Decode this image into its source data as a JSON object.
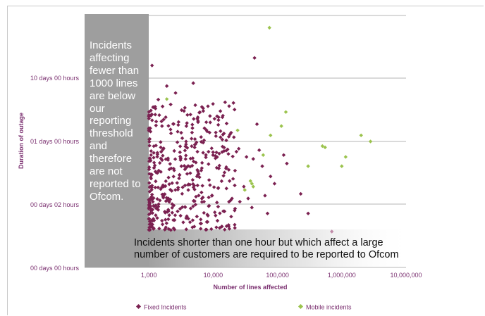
{
  "chart_data": {
    "type": "scatter",
    "title": "",
    "xlabel": "Number of lines affected",
    "ylabel": "Duration of outage",
    "x_scale": "log",
    "xlim": [
      100,
      10000000
    ],
    "x_ticks": [
      {
        "value": 1000,
        "label": "1,000"
      },
      {
        "value": 10000,
        "label": "10,000"
      },
      {
        "value": 100000,
        "label": "100,000"
      },
      {
        "value": 1000000,
        "label": "1,000,000"
      },
      {
        "value": 10000000,
        "label": "10,000,000"
      }
    ],
    "y_tick_labels": [
      "10 days 00 hours",
      "01 days 00 hours",
      "00 days 02 hours",
      "00 days 00 hours"
    ],
    "grid": "horizontal",
    "legend_position": "bottom",
    "annotations": {
      "left": "Incidents affecting fewer than 1000 lines are below our reporting threshold and therefore are not reported to Ofcom.",
      "bottom_line1": "Incidents shorter than one hour but which affect a large",
      "bottom_line2": "number of customers are required to be reported to Ofcom"
    },
    "series": [
      {
        "name": "Fixed Incidents",
        "color": "#7b2151",
        "points": [
          [
            1120,
            380
          ],
          [
            1250,
            85
          ],
          [
            1400,
            110
          ],
          [
            1600,
            42
          ],
          [
            1900,
            180
          ],
          [
            4900,
            200
          ],
          [
            9000,
            48
          ],
          [
            11500,
            60
          ],
          [
            13000,
            28
          ],
          [
            16000,
            25
          ],
          [
            19000,
            33
          ],
          [
            21000,
            28
          ],
          [
            23000,
            16
          ],
          [
            25000,
            18
          ],
          [
            33000,
            13
          ],
          [
            42000,
            12
          ],
          [
            44000,
            500
          ],
          [
            48000,
            45
          ],
          [
            52000,
            17
          ],
          [
            58000,
            9
          ],
          [
            78000,
            6
          ],
          [
            90000,
            4.5
          ],
          [
            125000,
            14
          ],
          [
            140000,
            10
          ],
          [
            230000,
            3
          ],
          [
            300000,
            1.5
          ],
          [
            2600,
            140
          ],
          [
            1080,
            14
          ],
          [
            1300,
            7
          ],
          [
            1700,
            4
          ],
          [
            2300,
            2
          ],
          [
            3200,
            9
          ],
          [
            4100,
            3.5
          ],
          [
            5600,
            6
          ],
          [
            7200,
            2.2
          ],
          [
            1050,
            1.5
          ],
          [
            1600,
            1.2
          ],
          [
            2800,
            1.6
          ],
          [
            3800,
            1.3
          ],
          [
            6500,
            1.1
          ],
          [
            8300,
            1.4
          ],
          [
            12000,
            3.8
          ],
          [
            15000,
            1.6
          ],
          [
            18000,
            5
          ],
          [
            26000,
            2.2
          ],
          [
            30000,
            4
          ],
          [
            35000,
            2.5
          ],
          [
            40000,
            1.8
          ],
          [
            64000,
            2.8
          ],
          [
            70000,
            1.5
          ],
          [
            15000,
            7
          ]
        ]
      },
      {
        "name": "Mobile incidents",
        "color": "#9bc34d",
        "points": [
          [
            75000,
            1500
          ],
          [
            1900,
            112
          ],
          [
            24000,
            36
          ],
          [
            78000,
            30
          ],
          [
            115000,
            42
          ],
          [
            135000,
            70
          ],
          [
            500000,
            20
          ],
          [
            550000,
            19
          ],
          [
            2000000,
            30
          ],
          [
            2800000,
            24
          ],
          [
            1150000,
            13
          ],
          [
            1000000,
            9
          ],
          [
            300000,
            9
          ],
          [
            38000,
            5
          ],
          [
            40000,
            4.5
          ],
          [
            42000,
            4
          ],
          [
            31000,
            3.5
          ],
          [
            60000,
            14
          ]
        ]
      }
    ]
  },
  "legend": {
    "fixed_label": "Fixed Incidents",
    "mobile_label": "Mobile incidents"
  },
  "colors": {
    "fixed": "#7b2151",
    "mobile": "#9bc34d",
    "axis_text": "#7b3070",
    "shade": "#9e9e9e",
    "grid": "#b0b0b0"
  }
}
